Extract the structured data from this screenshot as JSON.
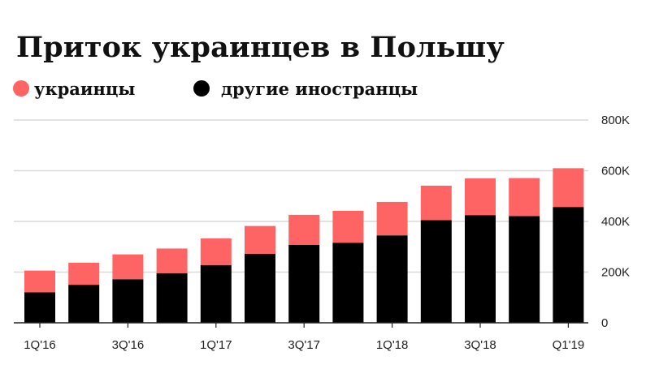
{
  "chart_data": {
    "type": "bar",
    "stacked": true,
    "title": "Приток украинцев в Польшу",
    "xlabel": "",
    "ylabel": "",
    "ylim": [
      0,
      800000
    ],
    "y_ticks": [
      {
        "value": 0,
        "label": "0"
      },
      {
        "value": 200000,
        "label": "200K"
      },
      {
        "value": 400000,
        "label": "400K"
      },
      {
        "value": 600000,
        "label": "600K"
      },
      {
        "value": 800000,
        "label": "800K"
      }
    ],
    "y_axis_side": "right",
    "grid": true,
    "legend_position": "top-left",
    "categories": [
      "1Q'16",
      "2Q'16",
      "3Q'16",
      "4Q'16",
      "1Q'17",
      "2Q'17",
      "3Q'17",
      "4Q'17",
      "1Q'18",
      "2Q'18",
      "3Q'18",
      "4Q'18",
      "Q1'19"
    ],
    "x_tick_labels": [
      {
        "index": 0,
        "label": "1Q'16"
      },
      {
        "index": 2,
        "label": "3Q'16"
      },
      {
        "index": 4,
        "label": "1Q'17"
      },
      {
        "index": 6,
        "label": "3Q'17"
      },
      {
        "index": 8,
        "label": "1Q'18"
      },
      {
        "index": 10,
        "label": "3Q'18"
      },
      {
        "index": 12,
        "label": "Q1'19"
      }
    ],
    "series": [
      {
        "name": "другие иностранцы",
        "color": "#000000",
        "values": [
          120000,
          150000,
          172000,
          196000,
          228000,
          272000,
          308000,
          316000,
          345000,
          405000,
          425000,
          421000,
          457000
        ]
      },
      {
        "name": "украинцы",
        "color": "#ff6464",
        "values": [
          86000,
          87000,
          98000,
          97000,
          105000,
          110000,
          118000,
          126000,
          132000,
          136000,
          145000,
          150000,
          153000
        ]
      }
    ]
  }
}
